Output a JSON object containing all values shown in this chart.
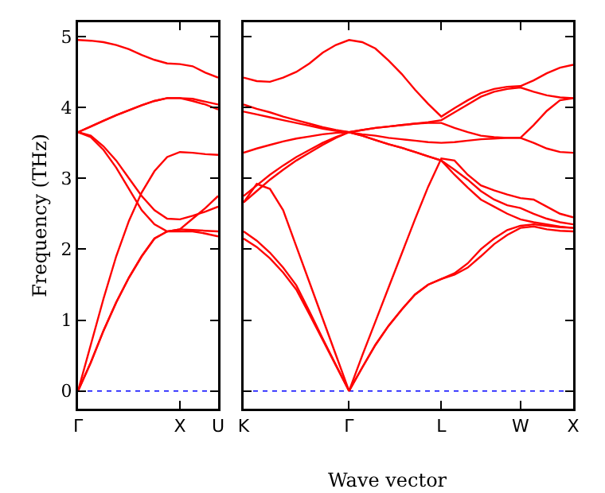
{
  "chart_data": [
    {
      "type": "line",
      "ylabel": "Frequency (THz)",
      "categories": [
        "Γ",
        null,
        null,
        null,
        null,
        null,
        null,
        null,
        "X",
        null,
        null,
        "U"
      ],
      "ylim": [
        -0.25,
        5.2
      ],
      "yticks": [
        0,
        1,
        2,
        3,
        4,
        5
      ],
      "grid": false,
      "ref_lines": [
        {
          "axis": "y",
          "value": 0,
          "color": "#0000ff",
          "line_style": "dotted"
        }
      ],
      "series": [
        {
          "color": "#ff0000",
          "values": [
            4.95,
            4.94,
            4.92,
            4.88,
            4.82,
            4.74,
            4.67,
            4.62,
            4.61,
            4.58,
            4.49,
            4.42
          ]
        },
        {
          "color": "#ff0000",
          "values": [
            3.65,
            3.73,
            3.81,
            3.89,
            3.96,
            4.03,
            4.09,
            4.13,
            4.13,
            4.12,
            4.08,
            4.04
          ]
        },
        {
          "color": "#ff0000",
          "values": [
            3.65,
            3.73,
            3.81,
            3.89,
            3.96,
            4.03,
            4.09,
            4.13,
            4.13,
            4.09,
            4.04,
            3.97
          ]
        },
        {
          "color": "#ff0000",
          "values": [
            0,
            0.65,
            1.3,
            1.9,
            2.4,
            2.8,
            3.1,
            3.3,
            3.37,
            3.36,
            3.34,
            3.33
          ]
        },
        {
          "color": "#ff0000",
          "values": [
            0,
            0.4,
            0.85,
            1.25,
            1.6,
            1.9,
            2.15,
            2.25,
            2.28,
            2.43,
            2.58,
            2.75
          ]
        },
        {
          "color": "#ff0000",
          "values": [
            0,
            0.4,
            0.85,
            1.25,
            1.6,
            1.9,
            2.15,
            2.25,
            2.28,
            2.27,
            2.26,
            2.25
          ]
        },
        {
          "color": "#ff0000",
          "values": [
            3.65,
            3.6,
            3.45,
            3.25,
            3.0,
            2.75,
            2.55,
            2.43,
            2.42,
            2.47,
            2.53,
            2.6
          ]
        },
        {
          "color": "#ff0000",
          "values": [
            3.65,
            3.58,
            3.4,
            3.15,
            2.85,
            2.55,
            2.35,
            2.25,
            2.25,
            2.25,
            2.22,
            2.18
          ]
        }
      ]
    },
    {
      "type": "line",
      "xlabel": "Wave vector",
      "categories": [
        "K",
        null,
        null,
        null,
        null,
        null,
        null,
        null,
        "Γ",
        null,
        null,
        null,
        null,
        null,
        null,
        "L",
        null,
        null,
        null,
        null,
        null,
        "W",
        null,
        null,
        null,
        "X"
      ],
      "ylim": [
        -0.25,
        5.2
      ],
      "yticks": [
        {
          "value": 0,
          "label": null
        },
        {
          "value": 1,
          "label": null
        },
        {
          "value": 2,
          "label": null
        },
        {
          "value": 3,
          "label": null
        },
        {
          "value": 4,
          "label": null
        },
        {
          "value": 5,
          "label": null
        }
      ],
      "tick_labels": "x",
      "grid": false,
      "ref_lines": [
        {
          "axis": "y",
          "value": 0,
          "color": "#0000ff",
          "line_style": "dotted"
        }
      ],
      "series": [
        {
          "color": "#ff0000",
          "values": [
            4.42,
            4.37,
            4.36,
            4.42,
            4.5,
            4.62,
            4.77,
            4.88,
            4.95,
            4.92,
            4.83,
            4.66,
            4.47,
            4.25,
            4.05,
            3.87,
            3.99,
            4.1,
            4.2,
            4.26,
            4.29,
            4.3,
            4.38,
            4.48,
            4.56,
            4.6
          ]
        },
        {
          "color": "#ff0000",
          "values": [
            4.04,
            3.98,
            3.93,
            3.87,
            3.82,
            3.77,
            3.72,
            3.68,
            3.65,
            3.68,
            3.71,
            3.73,
            3.75,
            3.77,
            3.79,
            3.82,
            3.93,
            4.04,
            4.15,
            4.22,
            4.26,
            4.28,
            4.22,
            4.17,
            4.14,
            4.13
          ]
        },
        {
          "color": "#ff0000",
          "values": [
            3.94,
            3.9,
            3.86,
            3.82,
            3.78,
            3.74,
            3.7,
            3.67,
            3.65,
            3.68,
            3.71,
            3.73,
            3.75,
            3.77,
            3.78,
            3.78,
            3.71,
            3.65,
            3.6,
            3.58,
            3.57,
            3.57,
            3.75,
            3.95,
            4.1,
            4.13
          ]
        },
        {
          "color": "#ff0000",
          "values": [
            3.36,
            3.42,
            3.47,
            3.52,
            3.56,
            3.59,
            3.62,
            3.64,
            3.65,
            3.62,
            3.6,
            3.57,
            3.55,
            3.53,
            3.51,
            3.5,
            3.51,
            3.53,
            3.55,
            3.56,
            3.57,
            3.57,
            3.5,
            3.42,
            3.37,
            3.36
          ]
        },
        {
          "color": "#ff0000",
          "values": [
            2.75,
            2.9,
            3.05,
            3.18,
            3.3,
            3.4,
            3.5,
            3.58,
            3.65,
            3.6,
            3.54,
            3.48,
            3.43,
            3.37,
            3.31,
            3.25,
            3.12,
            2.98,
            2.82,
            2.7,
            2.62,
            2.58,
            2.5,
            2.43,
            2.38,
            2.35
          ]
        },
        {
          "color": "#ff0000",
          "values": [
            2.66,
            2.82,
            2.98,
            3.12,
            3.25,
            3.36,
            3.47,
            3.57,
            3.65,
            3.6,
            3.54,
            3.48,
            3.43,
            3.37,
            3.31,
            3.25,
            3.05,
            2.87,
            2.7,
            2.6,
            2.5,
            2.42,
            2.38,
            2.35,
            2.32,
            2.3
          ]
        },
        {
          "color": "#ff0000",
          "values": [
            2.66,
            2.92,
            2.85,
            2.55,
            2.04,
            1.53,
            1.02,
            0.51,
            0,
            0.5,
            0.98,
            1.46,
            1.94,
            2.42,
            2.88,
            3.28,
            3.25,
            3.05,
            2.9,
            2.83,
            2.77,
            2.72,
            2.7,
            2.6,
            2.5,
            2.45
          ]
        },
        {
          "color": "#ff0000",
          "values": [
            2.25,
            2.12,
            1.95,
            1.74,
            1.49,
            1.12,
            0.74,
            0.37,
            0,
            0.33,
            0.65,
            0.92,
            1.15,
            1.36,
            1.5,
            1.58,
            1.66,
            1.8,
            2.0,
            2.15,
            2.27,
            2.33,
            2.35,
            2.33,
            2.31,
            2.3
          ]
        },
        {
          "color": "#ff0000",
          "values": [
            2.15,
            2.03,
            1.87,
            1.67,
            1.43,
            1.08,
            0.72,
            0.36,
            0,
            0.33,
            0.65,
            0.92,
            1.15,
            1.36,
            1.5,
            1.58,
            1.64,
            1.74,
            1.9,
            2.07,
            2.2,
            2.3,
            2.32,
            2.28,
            2.26,
            2.25
          ]
        }
      ]
    }
  ]
}
